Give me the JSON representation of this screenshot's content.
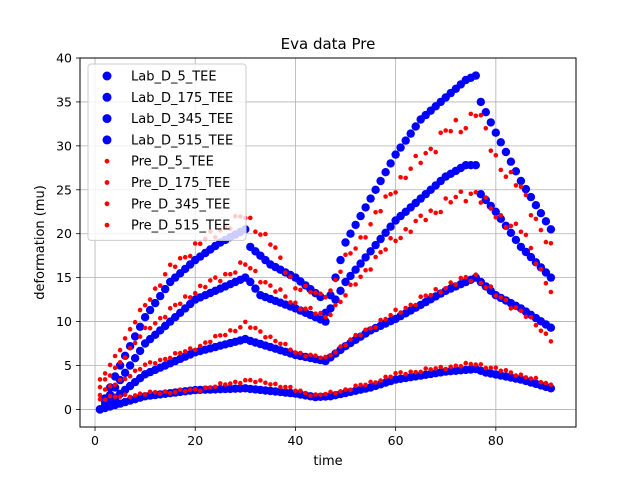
{
  "chart_data": {
    "type": "scatter",
    "title": "Eva data Pre",
    "xlabel": "time",
    "ylabel": "deformation (mu)",
    "xlim": [
      -3,
      96
    ],
    "ylim": [
      -2,
      40
    ],
    "xticks": [
      0,
      20,
      40,
      60,
      80
    ],
    "yticks": [
      0,
      5,
      10,
      15,
      20,
      25,
      30,
      35,
      40
    ],
    "grid": true,
    "legend_position": "upper-left",
    "colors": {
      "lab": "#0000ff",
      "pre": "#ff0000",
      "grid": "#b0b0b0",
      "axes": "#000000"
    },
    "x": {
      "start": 1,
      "end": 91,
      "step": 1
    },
    "series": [
      {
        "name": "Lab_D_5_TEE",
        "group": "lab",
        "marker": "large-circle",
        "knots": [
          [
            1,
            0
          ],
          [
            10,
            1.5
          ],
          [
            20,
            2.2
          ],
          [
            30,
            2.4
          ],
          [
            40,
            1.8
          ],
          [
            44,
            1.4
          ],
          [
            47,
            1.5
          ],
          [
            55,
            2.5
          ],
          [
            60,
            3.4
          ],
          [
            70,
            4.3
          ],
          [
            76,
            4.6
          ],
          [
            78,
            4.2
          ],
          [
            85,
            3.4
          ],
          [
            91,
            2.4
          ]
        ]
      },
      {
        "name": "Lab_D_175_TEE",
        "group": "lab",
        "marker": "large-circle",
        "knots": [
          [
            1,
            0
          ],
          [
            10,
            4
          ],
          [
            20,
            6.5
          ],
          [
            30,
            8
          ],
          [
            31,
            7.8
          ],
          [
            40,
            6.2
          ],
          [
            46,
            5.5
          ],
          [
            50,
            7.2
          ],
          [
            55,
            9
          ],
          [
            60,
            10.3
          ],
          [
            70,
            13.5
          ],
          [
            76,
            15
          ],
          [
            80,
            13
          ],
          [
            85,
            11.5
          ],
          [
            91,
            9.3
          ]
        ]
      },
      {
        "name": "Lab_D_345_TEE",
        "group": "lab",
        "marker": "large-circle",
        "knots": [
          [
            1,
            0
          ],
          [
            10,
            7.5
          ],
          [
            20,
            12.5
          ],
          [
            30,
            15
          ],
          [
            31,
            14.5
          ],
          [
            33,
            13
          ],
          [
            40,
            11.5
          ],
          [
            46,
            10
          ],
          [
            47,
            11.5
          ],
          [
            50,
            14.5
          ],
          [
            55,
            18
          ],
          [
            60,
            21.5
          ],
          [
            65,
            24
          ],
          [
            70,
            26.5
          ],
          [
            74,
            27.8
          ],
          [
            76,
            27.8
          ],
          [
            77,
            24.5
          ],
          [
            80,
            22.5
          ],
          [
            85,
            18.5
          ],
          [
            91,
            15
          ]
        ]
      },
      {
        "name": "Lab_D_515_TEE",
        "group": "lab",
        "marker": "large-circle",
        "knots": [
          [
            1,
            0
          ],
          [
            5,
            5
          ],
          [
            10,
            10.5
          ],
          [
            15,
            14.5
          ],
          [
            20,
            17
          ],
          [
            25,
            19
          ],
          [
            30,
            20.5
          ],
          [
            31,
            18.5
          ],
          [
            35,
            16.5
          ],
          [
            40,
            15
          ],
          [
            45,
            12.8
          ],
          [
            46,
            11
          ],
          [
            48,
            15
          ],
          [
            50,
            19
          ],
          [
            55,
            24
          ],
          [
            60,
            29
          ],
          [
            65,
            33
          ],
          [
            70,
            35.5
          ],
          [
            74,
            37.5
          ],
          [
            76,
            38
          ],
          [
            77,
            35
          ],
          [
            80,
            31.5
          ],
          [
            85,
            26
          ],
          [
            91,
            20.5
          ]
        ]
      },
      {
        "name": "Pre_D_5_TEE",
        "group": "pre",
        "marker": "small-dot",
        "knots": [
          [
            1,
            1.2
          ],
          [
            10,
            1.8
          ],
          [
            20,
            2.2
          ],
          [
            30,
            3.3
          ],
          [
            35,
            3.0
          ],
          [
            40,
            2.2
          ],
          [
            44,
            1.6
          ],
          [
            47,
            1.8
          ],
          [
            55,
            3.0
          ],
          [
            60,
            4.0
          ],
          [
            70,
            4.8
          ],
          [
            76,
            5.2
          ],
          [
            80,
            4.6
          ],
          [
            85,
            3.9
          ],
          [
            91,
            2.8
          ]
        ]
      },
      {
        "name": "Pre_D_175_TEE",
        "group": "pre",
        "marker": "small-dot",
        "knots": [
          [
            1,
            1.8
          ],
          [
            10,
            5
          ],
          [
            20,
            7
          ],
          [
            30,
            9.7
          ],
          [
            35,
            8.2
          ],
          [
            40,
            6.5
          ],
          [
            46,
            5.8
          ],
          [
            50,
            7.5
          ],
          [
            55,
            9.3
          ],
          [
            60,
            11
          ],
          [
            70,
            14
          ],
          [
            76,
            15.2
          ],
          [
            80,
            13
          ],
          [
            85,
            11.2
          ],
          [
            91,
            8
          ]
        ]
      },
      {
        "name": "Pre_D_345_TEE",
        "group": "pre",
        "marker": "small-dot",
        "knots": [
          [
            1,
            2.5
          ],
          [
            10,
            9
          ],
          [
            20,
            13.5
          ],
          [
            30,
            16.5
          ],
          [
            35,
            14
          ],
          [
            40,
            12
          ],
          [
            46,
            10.5
          ],
          [
            50,
            13
          ],
          [
            55,
            16.5
          ],
          [
            60,
            19.5
          ],
          [
            65,
            21.5
          ],
          [
            70,
            23.5
          ],
          [
            76,
            24.8
          ],
          [
            80,
            22
          ],
          [
            85,
            20.5
          ],
          [
            91,
            13.5
          ]
        ]
      },
      {
        "name": "Pre_D_515_TEE",
        "group": "pre",
        "marker": "small-dot",
        "knots": [
          [
            1,
            3.2
          ],
          [
            5,
            7
          ],
          [
            10,
            12
          ],
          [
            15,
            16
          ],
          [
            20,
            18.5
          ],
          [
            25,
            20.5
          ],
          [
            30,
            22
          ],
          [
            35,
            19
          ],
          [
            40,
            14
          ],
          [
            45,
            13
          ],
          [
            47,
            13.5
          ],
          [
            50,
            17
          ],
          [
            55,
            21
          ],
          [
            60,
            25.5
          ],
          [
            65,
            28.5
          ],
          [
            70,
            31.5
          ],
          [
            74,
            32.5
          ],
          [
            76,
            34.2
          ],
          [
            80,
            28.5
          ],
          [
            85,
            25
          ],
          [
            91,
            18.3
          ]
        ]
      }
    ]
  }
}
